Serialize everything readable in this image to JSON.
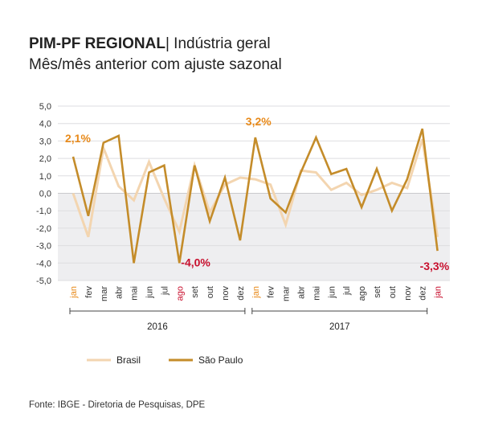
{
  "header": {
    "title_bold": "PIM-PF REGIONAL",
    "title_rest": "| Indústria geral",
    "subtitle": "Mês/mês anterior com ajuste sazonal"
  },
  "source": "Fonte: IBGE - Diretoria de Pesquisas, DPE",
  "chart_data": {
    "type": "line",
    "title": "PIM-PF REGIONAL | Indústria geral",
    "subtitle": "Mês/mês anterior com ajuste sazonal",
    "xlabel": "",
    "ylabel": "",
    "ylim": [
      -5.0,
      5.0
    ],
    "y_ticks": [
      "5,0",
      "4,0",
      "3,0",
      "2,0",
      "1,0",
      "0,0",
      "-1,0",
      "-2,0",
      "-3,0",
      "-4,0",
      "-5,0"
    ],
    "y_tick_values": [
      5,
      4,
      3,
      2,
      1,
      0,
      -1,
      -2,
      -3,
      -4,
      -5
    ],
    "categories": [
      "jan",
      "fev",
      "mar",
      "abr",
      "mai",
      "jun",
      "jul",
      "ago",
      "set",
      "out",
      "nov",
      "dez",
      "jan",
      "fev",
      "mar",
      "abr",
      "mai",
      "jun",
      "jul",
      "ago",
      "set",
      "out",
      "nov",
      "dez",
      "jan"
    ],
    "highlight_categories": [
      0,
      7,
      12,
      24
    ],
    "year_groups": [
      {
        "label": "2016",
        "start": 0,
        "end": 11
      },
      {
        "label": "2017",
        "start": 12,
        "end": 23
      }
    ],
    "series": [
      {
        "name": "Brasil",
        "color": "#f3d5b0",
        "values": [
          0.0,
          -2.5,
          2.6,
          0.4,
          -0.4,
          1.8,
          -0.3,
          -2.2,
          1.6,
          -1.1,
          0.5,
          0.9,
          0.8,
          0.5,
          -1.8,
          1.3,
          1.2,
          0.2,
          0.6,
          -0.1,
          0.2,
          0.6,
          0.3,
          3.1,
          -2.5
        ]
      },
      {
        "name": "São Paulo",
        "color": "#c48c2a",
        "values": [
          2.1,
          -1.3,
          2.9,
          3.3,
          -4.0,
          1.2,
          1.6,
          -4.0,
          1.6,
          -1.6,
          0.9,
          -2.7,
          3.2,
          -0.3,
          -1.1,
          1.2,
          3.2,
          1.1,
          1.4,
          -0.8,
          1.4,
          -1.0,
          0.8,
          3.7,
          -3.3
        ]
      }
    ],
    "annotations": [
      {
        "text": "2,1%",
        "index": 0,
        "value": 2.1,
        "color": "#e88a1a"
      },
      {
        "text": "-4,0%",
        "index": 7,
        "value": -4.0,
        "color": "#c8102e"
      },
      {
        "text": "3,2%",
        "index": 12,
        "value": 3.2,
        "color": "#e88a1a"
      },
      {
        "text": "-3,3%",
        "index": 24,
        "value": -3.3,
        "color": "#c8102e"
      }
    ],
    "legend": {
      "position": "bottom-left",
      "entries": [
        "Brasil",
        "São Paulo"
      ]
    }
  }
}
